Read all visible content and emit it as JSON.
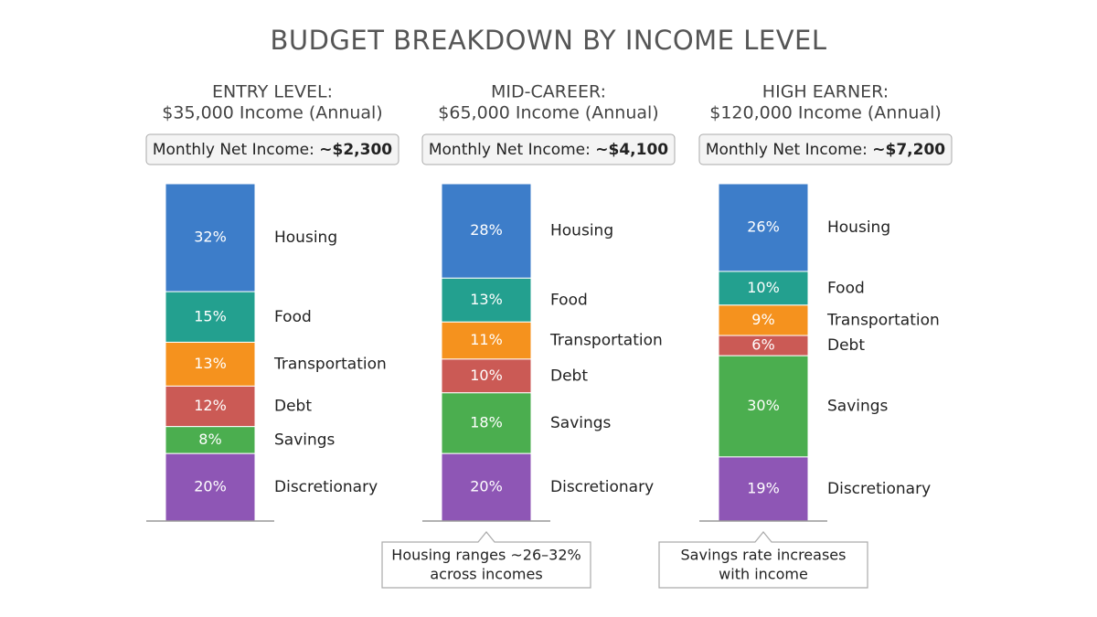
{
  "title": "BUDGET BREAKDOWN BY INCOME LEVEL",
  "chart_data": [
    {
      "type": "stacked-bar",
      "title": "ENTRY LEVEL:",
      "subtitle": "$35,000 Income (Annual)",
      "note_label": "Monthly Net Income:",
      "note_value": "~$2,300",
      "categories": [
        "Housing",
        "Food",
        "Transportation",
        "Debt",
        "Savings",
        "Discretionary"
      ],
      "values": [
        32,
        15,
        13,
        12,
        8,
        20
      ],
      "value_labels": [
        "32%",
        "15%",
        "13%",
        "12%",
        "8%",
        "20%"
      ],
      "colors": [
        "#3d7dc9",
        "#23a08f",
        "#f5921e",
        "#cb5a55",
        "#4bae4f",
        "#8e56b5"
      ]
    },
    {
      "type": "stacked-bar",
      "title": "MID-CAREER:",
      "subtitle": "$65,000 Income (Annual)",
      "note_label": "Monthly Net Income:",
      "note_value": "~$4,100",
      "categories": [
        "Housing",
        "Food",
        "Transportation",
        "Debt",
        "Savings",
        "Discretionary"
      ],
      "values": [
        28,
        13,
        11,
        10,
        18,
        20
      ],
      "value_labels": [
        "28%",
        "13%",
        "11%",
        "10%",
        "18%",
        "20%"
      ],
      "colors": [
        "#3d7dc9",
        "#23a08f",
        "#f5921e",
        "#cb5a55",
        "#4bae4f",
        "#8e56b5"
      ],
      "annotation": [
        "Housing ranges ~26–32%",
        "across incomes"
      ]
    },
    {
      "type": "stacked-bar",
      "title": "HIGH EARNER:",
      "subtitle": "$120,000 Income (Annual)",
      "note_label": "Monthly Net Income:",
      "note_value": "~$7,200",
      "categories": [
        "Housing",
        "Food",
        "Transportation",
        "Debt",
        "Savings",
        "Discretionary"
      ],
      "values": [
        26,
        10,
        9,
        6,
        30,
        19
      ],
      "value_labels": [
        "26%",
        "10%",
        "9%",
        "6%",
        "30%",
        "19%"
      ],
      "colors": [
        "#3d7dc9",
        "#23a08f",
        "#f5921e",
        "#cb5a55",
        "#4bae4f",
        "#8e56b5"
      ],
      "annotation": [
        "Savings rate increases",
        "with income"
      ]
    }
  ]
}
